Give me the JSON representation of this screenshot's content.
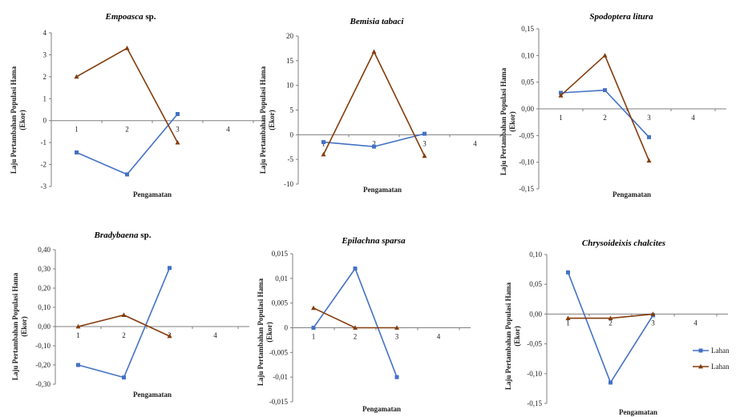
{
  "colors": {
    "series1": "#4472c4",
    "series2": "#843c0c",
    "axis": "#7f7f7f"
  },
  "legend": {
    "items": [
      "Lahan",
      "Lahan"
    ]
  },
  "chart_data": [
    {
      "type": "line",
      "title_italic": "Empoasca",
      "title_plain": " sp.",
      "ylabel_line1": "Laju Pertambahan  Populasi Hama",
      "ylabel_line2": "(Ekor)",
      "xlabel": "Pengamatan",
      "x_ticks": [
        "1",
        "2",
        "3",
        "4"
      ],
      "y_ticks": [
        "-3",
        "-2",
        "-1",
        "0",
        "1",
        "2",
        "3",
        "4"
      ],
      "y_tick_values": [
        -3,
        -2,
        -1,
        0,
        1,
        2,
        3,
        4
      ],
      "ylim": [
        -3,
        4
      ],
      "series": [
        {
          "values": [
            -1.45,
            -2.45,
            0.3
          ]
        },
        {
          "values": [
            2.0,
            3.3,
            -1.0
          ]
        }
      ]
    },
    {
      "type": "line",
      "title_italic": "Bemisia tabaci",
      "title_plain": "",
      "ylabel_line1": "Laju Pertambahan  Populasi Hama",
      "ylabel_line2": "(Ekor)",
      "xlabel": "Pengamatan",
      "x_ticks": [
        "1",
        "2",
        "3",
        "4"
      ],
      "y_ticks": [
        "-10",
        "-5",
        "0",
        "5",
        "10",
        "15",
        "20"
      ],
      "y_tick_values": [
        -10,
        -5,
        0,
        5,
        10,
        15,
        20
      ],
      "ylim": [
        -10,
        20
      ],
      "series": [
        {
          "values": [
            -1.5,
            -2.4,
            0.2
          ]
        },
        {
          "values": [
            -4.0,
            16.8,
            -4.3
          ]
        }
      ]
    },
    {
      "type": "line",
      "title_italic": "Spodoptera litura",
      "title_plain": "",
      "ylabel_line1": "Laju Pertambahan  Populasi Hama",
      "ylabel_line2": "(Ekor)",
      "xlabel": "Pengamatan",
      "x_ticks": [
        "1",
        "2",
        "3",
        "4"
      ],
      "y_ticks": [
        "-0,15",
        "-0,10",
        "-0,05",
        "0,00",
        "0,05",
        "0,10",
        "0,15"
      ],
      "y_tick_values": [
        -0.15,
        -0.1,
        -0.05,
        0,
        0.05,
        0.1,
        0.15
      ],
      "ylim": [
        -0.15,
        0.15
      ],
      "series": [
        {
          "values": [
            0.03,
            0.035,
            -0.053
          ]
        },
        {
          "values": [
            0.025,
            0.1,
            -0.097
          ]
        }
      ]
    },
    {
      "type": "line",
      "title_italic": "Bradybaena",
      "title_plain": " sp.",
      "ylabel_line1": "Laju Pertambahan  Populasi Hama",
      "ylabel_line2": "(Ekor)",
      "xlabel": "Pengamatan",
      "x_ticks": [
        "1",
        "2",
        "3",
        "4"
      ],
      "y_ticks": [
        "-0,30",
        "-0,20",
        "-0,10",
        "0,00",
        "0,10",
        "0,20",
        "0,30",
        "0,40"
      ],
      "y_tick_values": [
        -0.3,
        -0.2,
        -0.1,
        0,
        0.1,
        0.2,
        0.3,
        0.4
      ],
      "ylim": [
        -0.3,
        0.4
      ],
      "series": [
        {
          "values": [
            -0.2,
            -0.265,
            0.305
          ]
        },
        {
          "values": [
            0.0,
            0.06,
            -0.05
          ]
        }
      ]
    },
    {
      "type": "line",
      "title_italic": "Epilachna sparsa",
      "title_plain": "",
      "ylabel_line1": "Laju Pertambahan  Populasi Hama",
      "ylabel_line2": "(Ekor)",
      "xlabel": "Pengamatan",
      "x_ticks": [
        "1",
        "2",
        "3",
        "4"
      ],
      "y_ticks": [
        "-0,015",
        "-0,01",
        "-0,005",
        "0",
        "0,005",
        "0,01",
        "0,015"
      ],
      "y_tick_values": [
        -0.015,
        -0.01,
        -0.005,
        0,
        0.005,
        0.01,
        0.015
      ],
      "ylim": [
        -0.015,
        0.015
      ],
      "series": [
        {
          "values": [
            0.0,
            0.012,
            -0.01
          ]
        },
        {
          "values": [
            0.004,
            0.0,
            0.0
          ]
        }
      ]
    },
    {
      "type": "line",
      "title_italic": "Chrysoideixis chalcites",
      "title_plain": "",
      "ylabel_line1": "Laju Pertambahan  Populasi Hama",
      "ylabel_line2": "(Ekor)",
      "xlabel": "Pengamatan",
      "x_ticks": [
        "1",
        "2",
        "3",
        "4"
      ],
      "y_ticks": [
        "-0,15",
        "-0,10",
        "-0,05",
        "0,00",
        "0,05",
        "0,10"
      ],
      "y_tick_values": [
        -0.15,
        -0.1,
        -0.05,
        0,
        0.05,
        0.1
      ],
      "ylim": [
        -0.15,
        0.1
      ],
      "series": [
        {
          "values": [
            0.07,
            -0.115,
            -0.002
          ]
        },
        {
          "values": [
            -0.007,
            -0.007,
            0.0
          ]
        }
      ]
    }
  ]
}
